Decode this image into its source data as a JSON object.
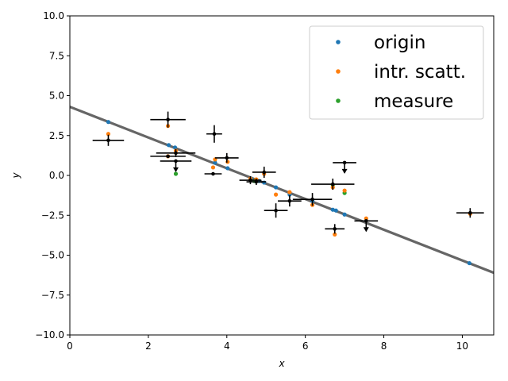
{
  "chart_data": {
    "type": "scatter",
    "xlabel": "x",
    "ylabel": "y",
    "xlim": [
      0,
      10.8
    ],
    "ylim": [
      -10,
      10
    ],
    "x_ticks": [
      "0",
      "2",
      "4",
      "6",
      "8",
      "10"
    ],
    "x_tick_values": [
      0,
      2,
      4,
      6,
      8,
      10
    ],
    "y_ticks": [
      "−10.0",
      "−7.5",
      "−5.0",
      "−2.5",
      "0.0",
      "2.5",
      "5.0",
      "7.5",
      "10.0"
    ],
    "y_tick_values": [
      -10,
      -7.5,
      -5,
      -2.5,
      0,
      2.5,
      5,
      7.5,
      10
    ],
    "grid": false,
    "legend_position": "top-right",
    "fit_line": {
      "color": "#666666",
      "points": [
        [
          0,
          4.3
        ],
        [
          10.8,
          -6.1
        ]
      ]
    },
    "series": [
      {
        "name": "origin",
        "color": "#1f77b4",
        "points": [
          [
            0.98,
            3.35
          ],
          [
            2.52,
            1.9
          ],
          [
            2.68,
            1.75
          ],
          [
            3.7,
            0.8
          ],
          [
            4.02,
            0.45
          ],
          [
            4.62,
            -0.2
          ],
          [
            4.82,
            -0.35
          ],
          [
            4.95,
            -0.45
          ],
          [
            5.25,
            -0.75
          ],
          [
            5.6,
            -1.2
          ],
          [
            6.18,
            -1.6
          ],
          [
            6.7,
            -2.15
          ],
          [
            6.78,
            -2.2
          ],
          [
            7.0,
            -2.45
          ],
          [
            10.18,
            -5.5
          ]
        ]
      },
      {
        "name": "intr. scatt.",
        "color": "#ff7f0e",
        "points": [
          [
            0.98,
            2.6
          ],
          [
            2.5,
            3.1
          ],
          [
            2.5,
            1.2
          ],
          [
            2.7,
            1.55
          ],
          [
            3.65,
            0.5
          ],
          [
            3.7,
            1.0
          ],
          [
            4.02,
            0.85
          ],
          [
            4.6,
            -0.2
          ],
          [
            4.75,
            -0.25
          ],
          [
            4.95,
            0.1
          ],
          [
            5.25,
            -1.2
          ],
          [
            5.6,
            -1.05
          ],
          [
            6.18,
            -1.85
          ],
          [
            6.7,
            -0.75
          ],
          [
            6.75,
            -3.7
          ],
          [
            7.0,
            -0.95
          ],
          [
            7.55,
            -2.7
          ],
          [
            10.2,
            -2.4
          ]
        ]
      },
      {
        "name": "measure",
        "color": "#2ca02c",
        "points": [
          [
            2.7,
            0.1
          ],
          [
            7.0,
            -1.1
          ],
          [
            6.7,
            -0.6
          ],
          [
            4.7,
            -0.35
          ]
        ]
      }
    ],
    "measurements": [
      {
        "x": 0.98,
        "y": 2.2,
        "xerr": 0.4,
        "yerr": 0.35,
        "upper_limit": false
      },
      {
        "x": 2.5,
        "y": 3.5,
        "xerr": 0.45,
        "yerr": 0.5,
        "upper_limit": false
      },
      {
        "x": 2.5,
        "y": 1.2,
        "xerr": 0.45,
        "yerr": 0.0,
        "upper_limit": false
      },
      {
        "x": 2.7,
        "y": 1.4,
        "xerr": 0.5,
        "yerr": 0.25,
        "upper_limit": false
      },
      {
        "x": 2.7,
        "y": 0.9,
        "xerr": 0.4,
        "yerr": 0.0,
        "upper_limit": true
      },
      {
        "x": 3.68,
        "y": 2.6,
        "xerr": 0.2,
        "yerr": 0.55,
        "upper_limit": false
      },
      {
        "x": 3.65,
        "y": 0.1,
        "xerr": 0.22,
        "yerr": 0.0,
        "upper_limit": false
      },
      {
        "x": 4.0,
        "y": 1.1,
        "xerr": 0.3,
        "yerr": 0.3,
        "upper_limit": false
      },
      {
        "x": 4.6,
        "y": -0.3,
        "xerr": 0.28,
        "yerr": 0.25,
        "upper_limit": false
      },
      {
        "x": 4.75,
        "y": -0.4,
        "xerr": 0.25,
        "yerr": 0.2,
        "upper_limit": false
      },
      {
        "x": 4.95,
        "y": 0.2,
        "xerr": 0.3,
        "yerr": 0.35,
        "upper_limit": false
      },
      {
        "x": 5.25,
        "y": -2.2,
        "xerr": 0.3,
        "yerr": 0.45,
        "upper_limit": false
      },
      {
        "x": 5.6,
        "y": -1.6,
        "xerr": 0.3,
        "yerr": 0.35,
        "upper_limit": false
      },
      {
        "x": 6.18,
        "y": -1.5,
        "xerr": 0.5,
        "yerr": 0.4,
        "upper_limit": false
      },
      {
        "x": 6.7,
        "y": -0.55,
        "xerr": 0.55,
        "yerr": 0.35,
        "upper_limit": false
      },
      {
        "x": 6.75,
        "y": -3.35,
        "xerr": 0.25,
        "yerr": 0.3,
        "upper_limit": false
      },
      {
        "x": 7.0,
        "y": 0.8,
        "xerr": 0.3,
        "yerr": 0.0,
        "upper_limit": true
      },
      {
        "x": 7.55,
        "y": -2.85,
        "xerr": 0.3,
        "yerr": 0.0,
        "upper_limit": true
      },
      {
        "x": 10.2,
        "y": -2.35,
        "xerr": 0.35,
        "yerr": 0.3,
        "upper_limit": false
      }
    ]
  }
}
